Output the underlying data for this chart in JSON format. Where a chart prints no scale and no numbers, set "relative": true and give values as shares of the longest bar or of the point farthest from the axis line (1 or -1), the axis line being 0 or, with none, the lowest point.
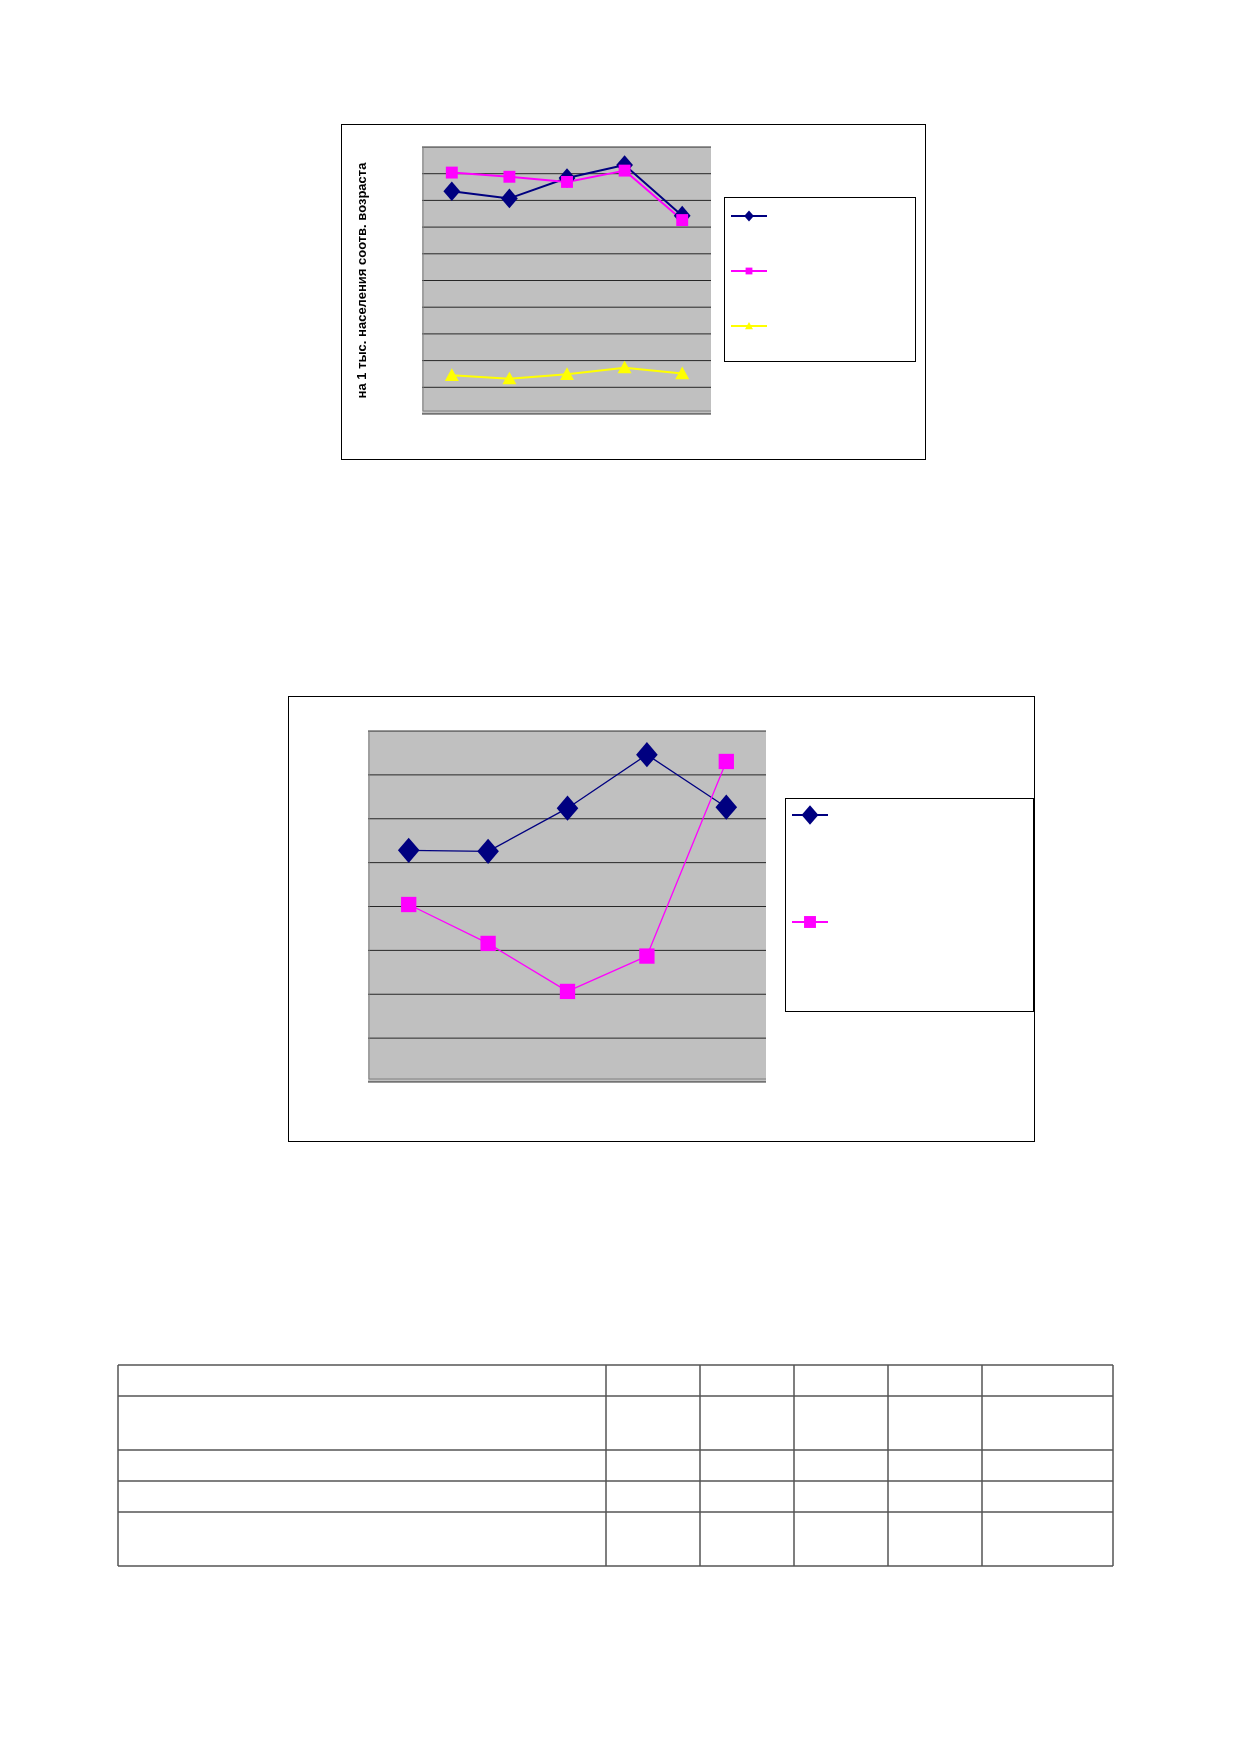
{
  "chart_data": [
    {
      "type": "line",
      "ylabel": "на 1 тыс. населения соотв. возраста",
      "relative": true,
      "categories": [
        null,
        null,
        null,
        null,
        null
      ],
      "grid": "y",
      "tick_labels": false,
      "series": [
        {
          "color": "#000080",
          "marker": "diamond",
          "values": [
            0.893,
            0.864,
            0.947,
            1,
            0.794
          ]
        },
        {
          "color": "#ff00ff",
          "marker": "square",
          "values": [
            0.969,
            0.952,
            0.931,
            0.977,
            0.776
          ]
        },
        {
          "color": "#ffff00",
          "marker": "triangle",
          "values": [
            0.145,
            0.131,
            0.149,
            0.176,
            0.152
          ]
        }
      ]
    },
    {
      "type": "line",
      "relative": true,
      "categories": [
        null,
        null,
        null,
        null,
        null
      ],
      "grid": "y",
      "tick_labels": false,
      "series": [
        {
          "color": "#000080",
          "marker": "diamond",
          "values": [
            0.705,
            0.702,
            0.835,
            1,
            0.838
          ]
        },
        {
          "color": "#ff00ff",
          "marker": "square",
          "values": [
            0.538,
            0.418,
            0.27,
            0.379,
            0.979
          ]
        }
      ]
    }
  ]
}
